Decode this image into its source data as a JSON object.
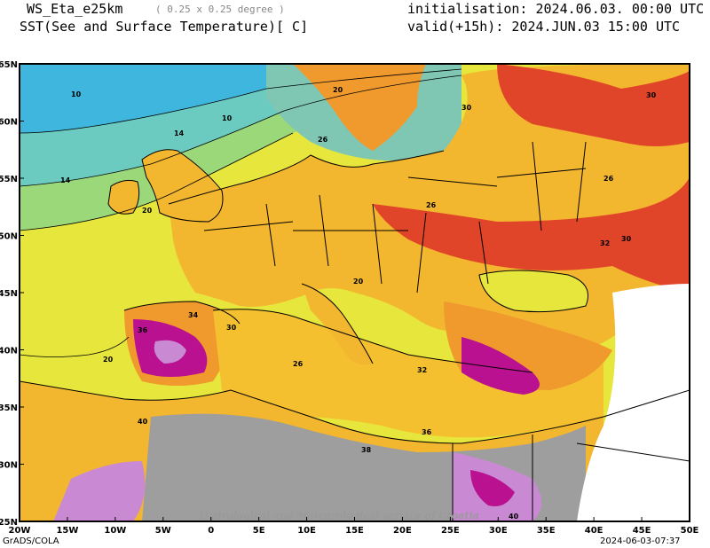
{
  "header": {
    "model": "WS_Eta_e25km",
    "resolution": "( 0.25 x 0.25 degree )",
    "field": "SST(See and Surface Temperature)[ C]",
    "init": "initialisation: 2024.06.03. 00:00 UTC",
    "valid": "valid(+15h): 2024.JUN.03 15:00 UTC"
  },
  "axes": {
    "lon_ticks": [
      "20W",
      "15W",
      "10W",
      "5W",
      "0",
      "5E",
      "10E",
      "15E",
      "20E",
      "25E",
      "30E",
      "35E",
      "40E",
      "45E",
      "50E"
    ],
    "lat_ticks": [
      "65N",
      "60N",
      "55N",
      "50N",
      "45N",
      "40N",
      "35N",
      "30N",
      "25N"
    ]
  },
  "contour_labels": [
    "10",
    "10",
    "14",
    "14",
    "20",
    "20",
    "20",
    "20",
    "26",
    "26",
    "26",
    "26",
    "30",
    "30",
    "30",
    "30",
    "32",
    "32",
    "34",
    "36",
    "36",
    "38",
    "40",
    "40"
  ],
  "watermark": "Hydrological and Meteorological service of Croatia",
  "footer": {
    "left": "GrADS/COLA",
    "right": "2024-06-03-07:37"
  },
  "colors": {
    "cold_sea": "#3fb6dd",
    "cool_sea": "#6ccbc0",
    "mild_sea": "#9bd87a",
    "warm_sea": "#e6e63c",
    "land_mild": "#f3b62f",
    "land_warm": "#f09a2e",
    "land_hot": "#e0452a",
    "land_very_hot": "#b9118f",
    "land_extreme": "#c98ad3",
    "no_data": "#9e9e9e"
  }
}
